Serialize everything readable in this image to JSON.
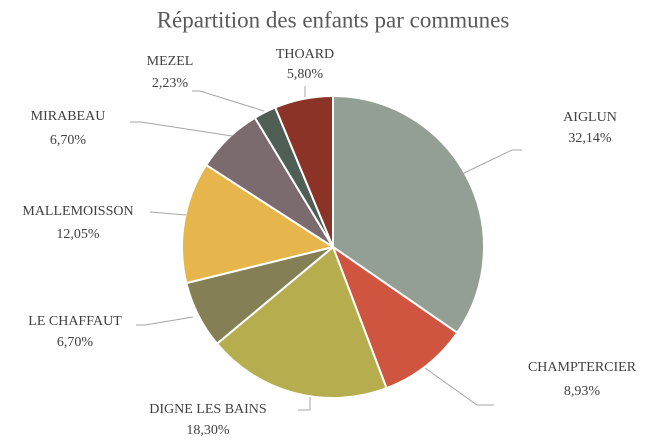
{
  "chart_data": {
    "type": "pie",
    "title": "Répartition des enfants par communes",
    "categories": [
      "AIGLUN",
      "CHAMPTERCIER",
      "DIGNE LES BAINS",
      "LE CHAFFAUT",
      "MALLEMOISSON",
      "MIRABEAU",
      "MEZEL",
      "THOARD"
    ],
    "values": [
      32.14,
      8.93,
      18.3,
      6.7,
      12.05,
      6.7,
      2.23,
      5.8
    ],
    "value_labels": [
      "32,14%",
      "8,93%",
      "18,30%",
      "6,70%",
      "12,05%",
      "6,70%",
      "2,23%",
      "5,80%"
    ],
    "colors": [
      "#939f94",
      "#d05540",
      "#b5ad4e",
      "#857f55",
      "#e6b64c",
      "#7b6a6e",
      "#4f5f55",
      "#8b3327"
    ]
  }
}
